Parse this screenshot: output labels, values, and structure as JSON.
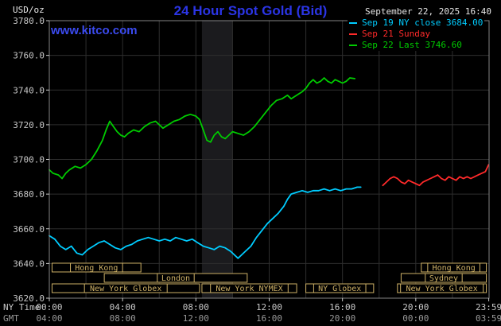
{
  "header": {
    "units_label": "USD/oz",
    "title": "24 Hour Spot Gold (Bid)",
    "timestamp": "September 22, 2025 16:40",
    "watermark": "www.kitco.com",
    "legend": [
      {
        "label": "Sep 19 NY close 3684.00",
        "color": "#00ccff"
      },
      {
        "label": "Sep 21 Sunday",
        "color": "#ff2a2a"
      },
      {
        "label": "Sep 22 Last 3746.60",
        "color": "#00cc00"
      }
    ]
  },
  "axes": {
    "ny_time_label": "NY Time",
    "gmt_label": "GMT"
  },
  "colors": {
    "background": "#000000",
    "title_blue": "#2b35e6",
    "watermark_blue": "#3b4bf0",
    "grid": "#2e2e2e",
    "plot_border": "#858585",
    "shaded_band": "#1b1b1e",
    "session": "#cdb066",
    "axis_text": "#c8c8c8",
    "gmt_text": "#999999",
    "timestamp_text": "#e6e6e6"
  },
  "chart_data": {
    "type": "line",
    "title": "24 Hour Spot Gold (Bid)",
    "ylabel": "USD/oz",
    "ylim": [
      3620,
      3780
    ],
    "y_tick_step": 20,
    "x_hours_range": [
      0,
      24
    ],
    "x_tick_hours": [
      0,
      4,
      8,
      12,
      16,
      20,
      23.983
    ],
    "x_ticks_ny": [
      "00:00",
      "04:00",
      "08:00",
      "12:00",
      "16:00",
      "20:00",
      "23:59"
    ],
    "x_ticks_gmt": [
      "04:00",
      "08:00",
      "12:00",
      "16:00",
      "20:00",
      "00:00",
      "03:59"
    ],
    "shaded_band_hours": [
      8.33,
      10.0
    ],
    "series": [
      {
        "name": "Sep 19 NY close",
        "color": "#00ccff",
        "last_value": 3684.0,
        "points": [
          [
            0,
            3656
          ],
          [
            0.3,
            3654
          ],
          [
            0.6,
            3650
          ],
          [
            0.9,
            3648
          ],
          [
            1.2,
            3650
          ],
          [
            1.5,
            3646
          ],
          [
            1.8,
            3645
          ],
          [
            2.1,
            3648
          ],
          [
            2.4,
            3650
          ],
          [
            2.7,
            3652
          ],
          [
            3,
            3653
          ],
          [
            3.3,
            3651
          ],
          [
            3.6,
            3649
          ],
          [
            3.9,
            3648
          ],
          [
            4.2,
            3650
          ],
          [
            4.5,
            3651
          ],
          [
            4.8,
            3653
          ],
          [
            5.1,
            3654
          ],
          [
            5.4,
            3655
          ],
          [
            5.7,
            3654
          ],
          [
            6,
            3653
          ],
          [
            6.3,
            3654
          ],
          [
            6.6,
            3653
          ],
          [
            6.9,
            3655
          ],
          [
            7.2,
            3654
          ],
          [
            7.5,
            3653
          ],
          [
            7.8,
            3654
          ],
          [
            8.1,
            3652
          ],
          [
            8.4,
            3650
          ],
          [
            8.7,
            3649
          ],
          [
            9,
            3648
          ],
          [
            9.3,
            3650
          ],
          [
            9.6,
            3649
          ],
          [
            9.9,
            3647
          ],
          [
            10.1,
            3645
          ],
          [
            10.3,
            3643
          ],
          [
            10.5,
            3645
          ],
          [
            10.7,
            3647
          ],
          [
            11,
            3650
          ],
          [
            11.3,
            3655
          ],
          [
            11.6,
            3659
          ],
          [
            11.9,
            3663
          ],
          [
            12.2,
            3666
          ],
          [
            12.5,
            3669
          ],
          [
            12.8,
            3673
          ],
          [
            13,
            3677
          ],
          [
            13.2,
            3680
          ],
          [
            13.5,
            3681
          ],
          [
            13.8,
            3682
          ],
          [
            14.1,
            3681
          ],
          [
            14.4,
            3682
          ],
          [
            14.7,
            3682
          ],
          [
            15,
            3683
          ],
          [
            15.3,
            3682
          ],
          [
            15.6,
            3683
          ],
          [
            15.9,
            3682
          ],
          [
            16.2,
            3683
          ],
          [
            16.5,
            3683
          ],
          [
            16.8,
            3684
          ],
          [
            17,
            3684
          ]
        ]
      },
      {
        "name": "Sep 21 Sunday",
        "color": "#ff2a2a",
        "last_value": 3697,
        "points": [
          [
            18.2,
            3685
          ],
          [
            18.4,
            3687
          ],
          [
            18.6,
            3689
          ],
          [
            18.8,
            3690
          ],
          [
            19,
            3689
          ],
          [
            19.2,
            3687
          ],
          [
            19.4,
            3686
          ],
          [
            19.6,
            3688
          ],
          [
            19.8,
            3687
          ],
          [
            20,
            3686
          ],
          [
            20.2,
            3685
          ],
          [
            20.4,
            3687
          ],
          [
            20.6,
            3688
          ],
          [
            20.8,
            3689
          ],
          [
            21,
            3690
          ],
          [
            21.2,
            3691
          ],
          [
            21.4,
            3689
          ],
          [
            21.6,
            3688
          ],
          [
            21.8,
            3690
          ],
          [
            22,
            3689
          ],
          [
            22.2,
            3688
          ],
          [
            22.4,
            3690
          ],
          [
            22.6,
            3689
          ],
          [
            22.8,
            3690
          ],
          [
            23,
            3689
          ],
          [
            23.2,
            3690
          ],
          [
            23.4,
            3691
          ],
          [
            23.6,
            3692
          ],
          [
            23.8,
            3693
          ],
          [
            23.98,
            3697
          ]
        ]
      },
      {
        "name": "Sep 22 Last",
        "color": "#00cc00",
        "last_value": 3746.6,
        "points": [
          [
            0,
            3694
          ],
          [
            0.2,
            3692
          ],
          [
            0.5,
            3691
          ],
          [
            0.7,
            3689
          ],
          [
            0.9,
            3692
          ],
          [
            1.1,
            3694
          ],
          [
            1.4,
            3696
          ],
          [
            1.7,
            3695
          ],
          [
            2,
            3697
          ],
          [
            2.3,
            3700
          ],
          [
            2.6,
            3705
          ],
          [
            2.9,
            3711
          ],
          [
            3.1,
            3717
          ],
          [
            3.3,
            3722
          ],
          [
            3.5,
            3719
          ],
          [
            3.7,
            3716
          ],
          [
            3.9,
            3714
          ],
          [
            4.1,
            3713
          ],
          [
            4.3,
            3715
          ],
          [
            4.6,
            3717
          ],
          [
            4.9,
            3716
          ],
          [
            5.2,
            3719
          ],
          [
            5.5,
            3721
          ],
          [
            5.8,
            3722
          ],
          [
            6,
            3720
          ],
          [
            6.2,
            3718
          ],
          [
            6.5,
            3720
          ],
          [
            6.8,
            3722
          ],
          [
            7.1,
            3723
          ],
          [
            7.4,
            3725
          ],
          [
            7.7,
            3726
          ],
          [
            8,
            3725
          ],
          [
            8.2,
            3723
          ],
          [
            8.4,
            3717
          ],
          [
            8.6,
            3711
          ],
          [
            8.8,
            3710
          ],
          [
            9,
            3714
          ],
          [
            9.2,
            3716
          ],
          [
            9.4,
            3713
          ],
          [
            9.6,
            3712
          ],
          [
            9.8,
            3714
          ],
          [
            10,
            3716
          ],
          [
            10.3,
            3715
          ],
          [
            10.6,
            3714
          ],
          [
            10.9,
            3716
          ],
          [
            11.2,
            3719
          ],
          [
            11.5,
            3723
          ],
          [
            11.8,
            3727
          ],
          [
            12.1,
            3731
          ],
          [
            12.4,
            3734
          ],
          [
            12.7,
            3735
          ],
          [
            13,
            3737
          ],
          [
            13.2,
            3735
          ],
          [
            13.5,
            3737
          ],
          [
            13.8,
            3739
          ],
          [
            14,
            3741
          ],
          [
            14.2,
            3744
          ],
          [
            14.4,
            3746
          ],
          [
            14.6,
            3744
          ],
          [
            14.8,
            3745
          ],
          [
            15,
            3747
          ],
          [
            15.2,
            3745
          ],
          [
            15.4,
            3744
          ],
          [
            15.6,
            3746
          ],
          [
            15.8,
            3745
          ],
          [
            16,
            3744
          ],
          [
            16.2,
            3745
          ],
          [
            16.4,
            3747
          ],
          [
            16.67,
            3746.6
          ]
        ]
      }
    ],
    "sessions": [
      {
        "row": 0,
        "label": "Hong Kong",
        "start": 0.15,
        "end": 5.0
      },
      {
        "row": 0,
        "label": "Hong Kong",
        "start": 20.3,
        "end": 23.85
      },
      {
        "row": 1,
        "label": "London",
        "start": 3.0,
        "end": 10.8
      },
      {
        "row": 1,
        "label": "Sydney",
        "start": 19.2,
        "end": 23.85
      },
      {
        "row": 2,
        "label": "New York Globex",
        "start": 0.15,
        "end": 8.2
      },
      {
        "row": 2,
        "label": "New York NYMEX",
        "start": 8.33,
        "end": 13.5
      },
      {
        "row": 2,
        "label": "NY Globex",
        "start": 14.0,
        "end": 17.7
      },
      {
        "row": 2,
        "label": "New York Globex",
        "start": 19.0,
        "end": 23.85
      }
    ]
  }
}
